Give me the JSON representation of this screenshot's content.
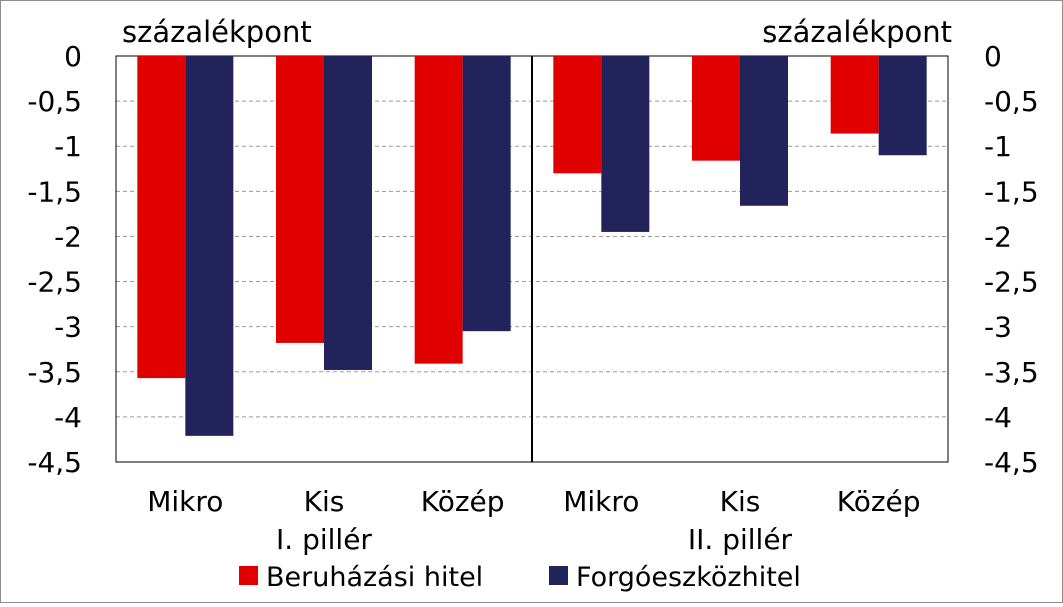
{
  "chart_data": {
    "type": "bar",
    "left_unit_label": "százalékpont",
    "right_unit_label": "százalékpont",
    "yticks": [
      "0",
      "-0,5",
      "-1",
      "-1,5",
      "-2",
      "-2,5",
      "-3",
      "-3,5",
      "-4",
      "-4,5"
    ],
    "ylim": [
      -4.5,
      0
    ],
    "grid": true,
    "legend_position": "bottom",
    "categories": [
      "Mikro",
      "Kis",
      "Közép",
      "Mikro",
      "Kis",
      "Közép"
    ],
    "groups": [
      "I. pillér",
      "II. pillér"
    ],
    "series": [
      {
        "name": "Beruházási hitel",
        "color": "#e00000",
        "values": [
          -3.57,
          -3.18,
          -3.41,
          -1.3,
          -1.16,
          -0.86
        ]
      },
      {
        "name": "Forgóeszközhitel",
        "color": "#22235a",
        "values": [
          -4.21,
          -3.48,
          -3.05,
          -1.95,
          -1.66,
          -1.1
        ]
      }
    ]
  }
}
